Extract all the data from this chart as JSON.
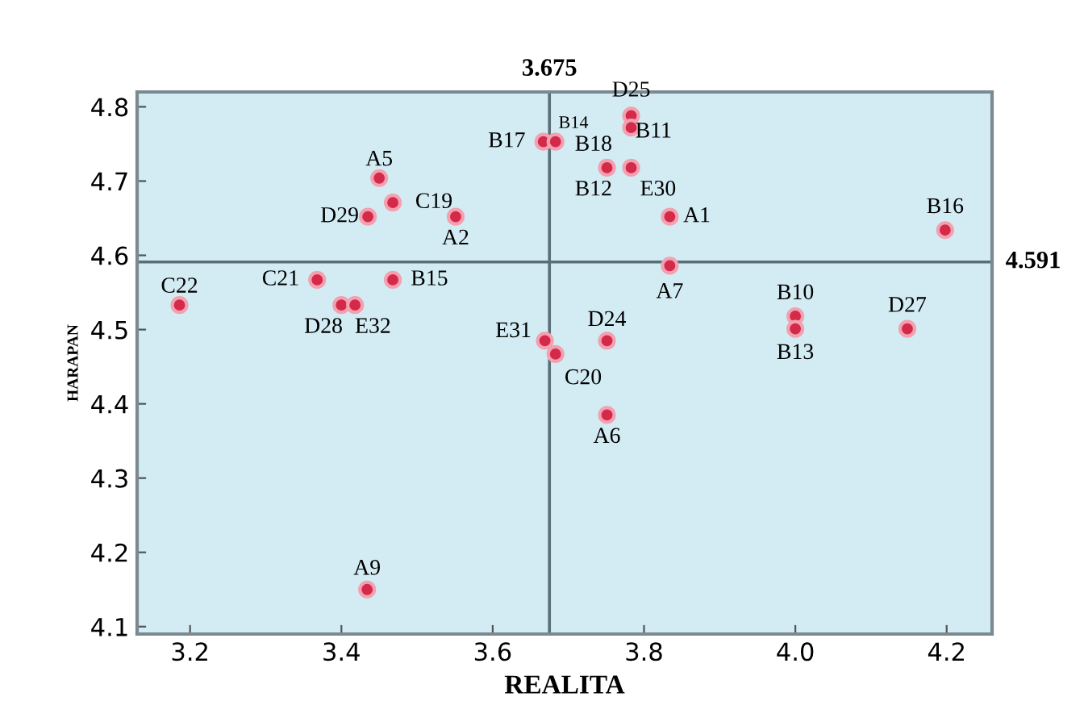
{
  "chart_data": {
    "type": "scatter",
    "xlabel": "REALITA",
    "ylabel": "HARAPAN",
    "xlim": [
      3.13,
      4.26
    ],
    "ylim": [
      4.09,
      4.82
    ],
    "xticks": [
      3.2,
      3.4,
      3.6,
      3.8,
      {
        "value": 4.0,
        "label": "4.0"
      },
      4.2
    ],
    "yticks": [
      4.1,
      4.2,
      4.3,
      4.4,
      4.5,
      4.6,
      4.7,
      4.8
    ],
    "grid": false,
    "marker": "circle",
    "series": [
      {
        "color": "#d42a4a",
        "x": [
          3.45,
          3.468,
          3.435,
          3.551,
          3.186,
          3.368,
          3.4,
          3.418,
          3.468,
          3.667,
          3.683,
          3.669,
          3.683,
          3.783,
          3.783,
          3.751,
          null,
          3.783,
          3.834,
          3.834,
          4.198,
          4.0,
          4.0,
          4.148,
          3.751,
          3.751,
          3.434
        ],
        "values": [
          4.704,
          4.671,
          4.652,
          4.652,
          4.533,
          4.567,
          4.533,
          4.533,
          4.567,
          4.753,
          4.753,
          4.485,
          4.467,
          4.788,
          4.772,
          4.718,
          null,
          4.718,
          4.652,
          4.586,
          4.634,
          4.518,
          4.501,
          4.501,
          4.485,
          4.385,
          4.15
        ]
      }
    ],
    "ref_lines": [
      {
        "axis": "x",
        "value": 3.675,
        "label": "3.675",
        "color": "#5a6e78"
      },
      {
        "axis": "y",
        "value": 4.591,
        "label": "4.591",
        "color": "#5a6e78"
      }
    ],
    "annotations": [
      {
        "text": "A5",
        "x": 3.45,
        "y": 4.704
      },
      {
        "text": "C19",
        "x": 3.468,
        "y": 4.671
      },
      {
        "text": "D29",
        "x": 3.435,
        "y": 4.652
      },
      {
        "text": "A2",
        "x": 3.551,
        "y": 4.652
      },
      {
        "text": "C22",
        "x": 3.186,
        "y": 4.533
      },
      {
        "text": "C21",
        "x": 3.368,
        "y": 4.567
      },
      {
        "text": "D28",
        "x": 3.4,
        "y": 4.533
      },
      {
        "text": "E32",
        "x": 3.418,
        "y": 4.533
      },
      {
        "text": "B15",
        "x": 3.468,
        "y": 4.567
      },
      {
        "text": "B17",
        "x": 3.667,
        "y": 4.753
      },
      {
        "text": "B14",
        "x": 3.683,
        "y": 4.753
      },
      {
        "text": "E31",
        "x": 3.669,
        "y": 4.485
      },
      {
        "text": "C20",
        "x": 3.683,
        "y": 4.467
      },
      {
        "text": "D25",
        "x": 3.783,
        "y": 4.788
      },
      {
        "text": "B11",
        "x": 3.783,
        "y": 4.772
      },
      {
        "text": "B18",
        "x": 3.751,
        "y": 4.718
      },
      {
        "text": "B12",
        "x": 3.751,
        "y": 4.718
      },
      {
        "text": "E30",
        "x": 3.783,
        "y": 4.718
      },
      {
        "text": "A1",
        "x": 3.834,
        "y": 4.652
      },
      {
        "text": "A7",
        "x": 3.834,
        "y": 4.586
      },
      {
        "text": "B16",
        "x": 4.198,
        "y": 4.634
      },
      {
        "text": "B10",
        "x": 4.0,
        "y": 4.518
      },
      {
        "text": "B13",
        "x": 4.0,
        "y": 4.501
      },
      {
        "text": "D27",
        "x": 4.148,
        "y": 4.501
      },
      {
        "text": "D24",
        "x": 3.751,
        "y": 4.485
      },
      {
        "text": "A6",
        "x": 3.751,
        "y": 4.385
      },
      {
        "text": "A9",
        "x": 3.434,
        "y": 4.15
      }
    ]
  }
}
